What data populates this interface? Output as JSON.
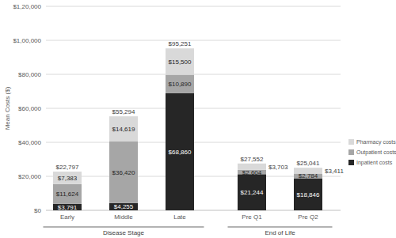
{
  "chart_data": {
    "type": "bar",
    "stacked": true,
    "data_labels": true,
    "grid": true,
    "legend": "right",
    "y_label": "Mean Costs ($)",
    "categories": [
      "Early",
      "Middle",
      "Late",
      "Pre Q1",
      "Pre Q2"
    ],
    "groups": [
      {
        "label": "Disease Stage",
        "span": 3
      },
      {
        "label": "End of Life",
        "span": 2
      }
    ],
    "series": [
      {
        "name": "Inpatient costs",
        "color": "#262626",
        "values": [
          3791,
          4255,
          68860,
          21244,
          18846
        ],
        "value_labels": [
          "$3,791",
          "$4,255",
          "$68,860",
          "$21,244",
          "$18,846"
        ]
      },
      {
        "name": "Outpatient costs",
        "color": "#a6a6a6",
        "values": [
          11624,
          36420,
          10890,
          2604,
          2784
        ],
        "value_labels": [
          "$11,624",
          "$36,420",
          "$10,890",
          "$2,604",
          "$2,784"
        ]
      },
      {
        "name": "Pharmacy costs",
        "color": "#d9d9d9",
        "values": [
          7383,
          14619,
          15500,
          3703,
          3411
        ],
        "value_labels": [
          "$7,383",
          "$14,619",
          "$15,500",
          "$3,703",
          "$3,411"
        ]
      }
    ],
    "totals": [
      22797,
      55294,
      95251,
      27552,
      25041
    ],
    "total_labels": [
      "$22,797",
      "$55,294",
      "$95,251",
      "$27,552",
      "$25,041"
    ],
    "ylim": [
      0,
      120000
    ],
    "yticks": [
      {
        "value": 0,
        "label": "$0"
      },
      {
        "value": 20000,
        "label": "$20,000"
      },
      {
        "value": 40000,
        "label": "$40,000"
      },
      {
        "value": 60000,
        "label": "$60,000"
      },
      {
        "value": 80000,
        "label": "$80,000"
      },
      {
        "value": 100000,
        "label": "$1,00,000"
      },
      {
        "value": 120000,
        "label": "$1,20,000"
      }
    ]
  }
}
